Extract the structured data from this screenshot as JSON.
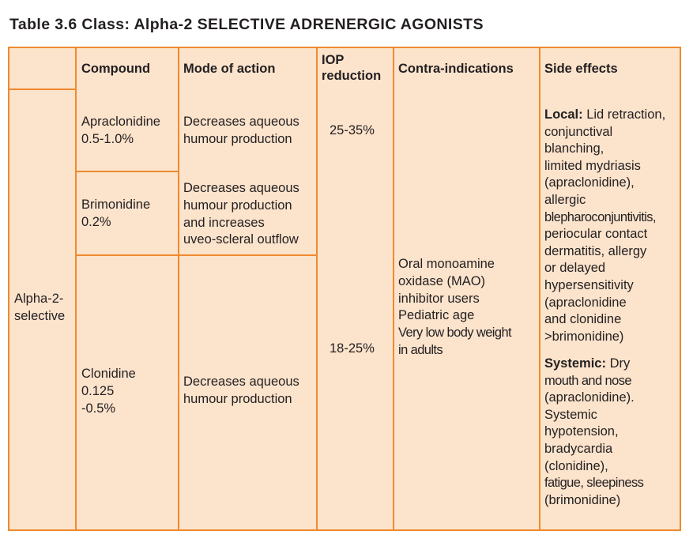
{
  "title": "Table 3.6 Class: Alpha-2 SELECTIVE ADRENERGIC AGONISTS",
  "headers": {
    "compound": "Compound",
    "mode": "Mode of action",
    "iop_line1": "IOP",
    "iop_line2": "reduction",
    "contra": "Contra-indications",
    "side": "Side effects"
  },
  "class_label": {
    "line1": "Alpha-2-",
    "line2": "selective"
  },
  "rows": [
    {
      "compound": [
        "Apraclonidine",
        "0.5-1.0%"
      ],
      "mode": [
        "Decreases aqueous",
        "humour production"
      ]
    },
    {
      "compound": [
        "Brimonidine",
        "0.2%"
      ],
      "mode": [
        "Decreases aqueous",
        "humour production",
        "and increases",
        "uveo-scleral outflow"
      ]
    },
    {
      "compound": [
        "Clonidine",
        "0.125",
        "-0.5%"
      ],
      "mode": [
        "Decreases aqueous",
        "humour production"
      ]
    }
  ],
  "iop": [
    "25-35%",
    "18-25%"
  ],
  "contraindications": [
    "Oral monoamine",
    "oxidase (MAO)",
    "inhibitor users",
    "Pediatric age",
    "Very low body weight",
    "in adults"
  ],
  "side_effects": {
    "local_label": "Local:",
    "local_first": "Lid retraction,",
    "local_lines": [
      "conjunctival",
      "blanching,",
      "limited mydriasis",
      "(apraclonidine),",
      "allergic",
      "blepharoconjuntivitis,",
      "periocular contact",
      "dermatitis, allergy",
      "or delayed",
      "hypersensitivity",
      "(apraclonidine",
      "and clonidine",
      ">brimonidine)"
    ],
    "systemic_label": "Systemic:",
    "systemic_first": "Dry",
    "systemic_lines": [
      "mouth and nose",
      "(apraclonidine).",
      "Systemic",
      "hypotension,",
      "bradycardia",
      "(clonidine),",
      "fatigue, sleepiness",
      "(brimonidine)"
    ]
  },
  "colors": {
    "border": "#ef8a2e",
    "background": "#fbe3cc"
  }
}
